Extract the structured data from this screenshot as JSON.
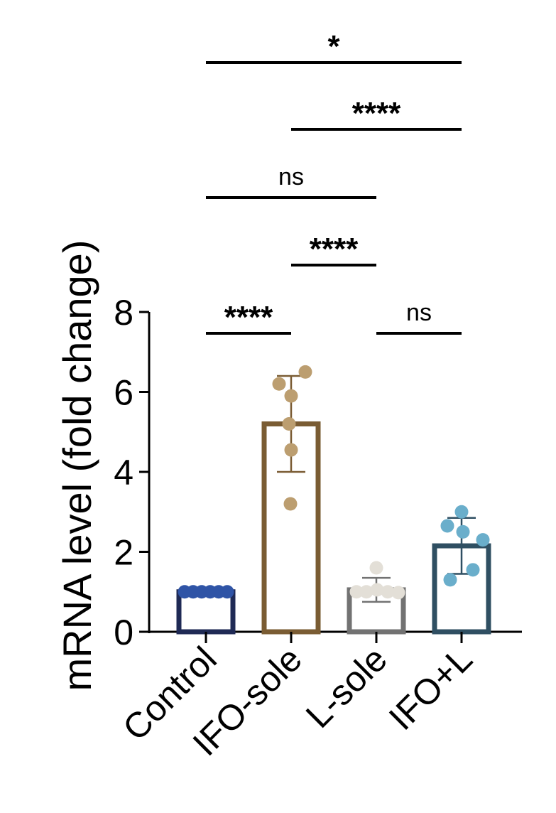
{
  "chart_data": {
    "type": "bar",
    "title": "",
    "xlabel": "",
    "ylabel": "mRNA level (fold change)",
    "ylim": [
      0,
      8
    ],
    "yticks": [
      0,
      2,
      4,
      6,
      8
    ],
    "grid": false,
    "legend": "none",
    "categories": [
      "Control",
      "IFO-sole",
      "L-sole",
      "IFO+L"
    ],
    "values": [
      1.0,
      5.2,
      1.05,
      2.15
    ],
    "error_sd": [
      0.0,
      1.2,
      0.3,
      0.7
    ],
    "points": [
      [
        1.0,
        1.0,
        1.0,
        1.0,
        1.0,
        1.0
      ],
      [
        6.5,
        6.2,
        5.9,
        5.2,
        4.55,
        3.2
      ],
      [
        1.6,
        1.0,
        1.0,
        1.05,
        1.0,
        0.98
      ],
      [
        3.0,
        2.65,
        2.5,
        2.3,
        1.55,
        1.3
      ]
    ],
    "bar_colors": [
      "#1f2a55",
      "#7a5c33",
      "#727272",
      "#2f4f62"
    ],
    "point_colors": [
      "#2f54a6",
      "#bc9e70",
      "#e3dfd7",
      "#6aaecb"
    ],
    "comparisons": [
      {
        "groups": [
          "Control",
          "IFO+L"
        ],
        "label": "*"
      },
      {
        "groups": [
          "IFO-sole",
          "IFO+L"
        ],
        "label": "****"
      },
      {
        "groups": [
          "Control",
          "L-sole"
        ],
        "label": "ns"
      },
      {
        "groups": [
          "IFO-sole",
          "L-sole"
        ],
        "label": "****"
      },
      {
        "groups": [
          "Control",
          "IFO-sole"
        ],
        "label": "****"
      },
      {
        "groups": [
          "L-sole",
          "IFO+L"
        ],
        "label": "ns"
      }
    ]
  }
}
